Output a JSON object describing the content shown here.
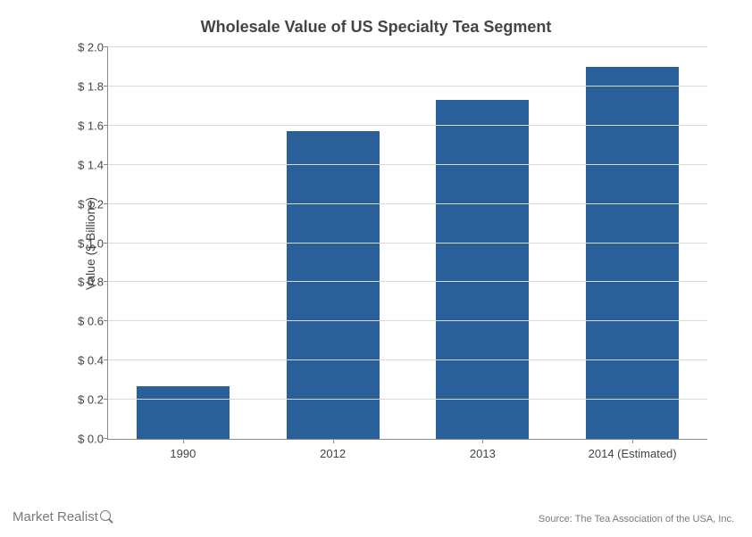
{
  "chart": {
    "type": "bar",
    "title": "Wholesale Value of US Specialty Tea Segment",
    "title_fontsize": 18,
    "title_color": "#444444",
    "ylabel": "Value ($ Billions)",
    "ylabel_fontsize": 14,
    "categories": [
      "1990",
      "2012",
      "2013",
      "2014 (Estimated)"
    ],
    "values": [
      0.27,
      1.57,
      1.73,
      1.9
    ],
    "bar_color": "#2a6099",
    "background_color": "#ffffff",
    "grid_color": "#d9d9d9",
    "axis_color": "#888888",
    "tick_label_color": "#444444",
    "tick_fontsize": 13,
    "ylim": [
      0.0,
      2.0
    ],
    "ytick_step": 0.2,
    "yticks": [
      "$ 0.0",
      "$ 0.2",
      "$ 0.4",
      "$ 0.6",
      "$ 0.8",
      "$ 1.0",
      "$ 1.2",
      "$ 1.4",
      "$ 1.6",
      "$ 1.8",
      "$ 2.0"
    ],
    "bar_width": 0.62
  },
  "watermark": {
    "text": "Market Realist",
    "color": "#7a7a7a",
    "fontsize": 15,
    "icon": "magnifying-glass-icon"
  },
  "source": {
    "text": "Source: The Tea Association of the USA, Inc.",
    "color": "#7a7a7a",
    "fontsize": 11
  }
}
